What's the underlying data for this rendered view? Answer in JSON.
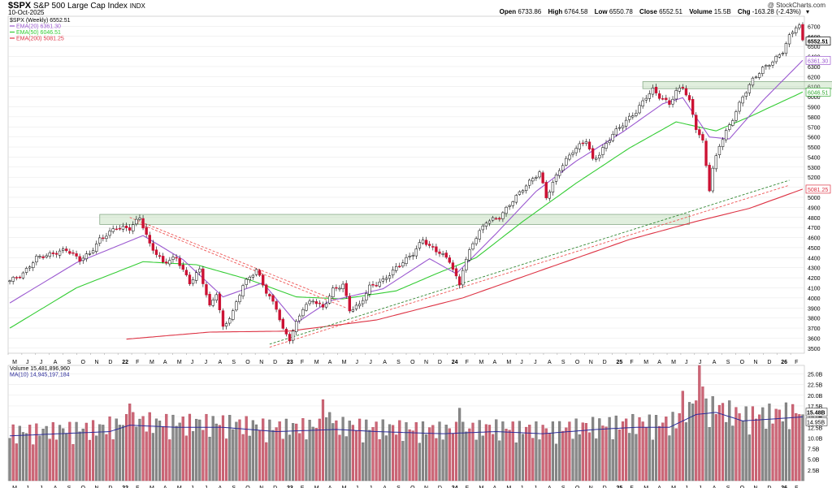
{
  "header": {
    "symbol": "$SPX",
    "name": "S&P 500 Large Cap Index",
    "exchange": "INDX",
    "date": "10-Oct-2025",
    "watermark": "@ StockCharts.com",
    "open_label": "Open",
    "open": "6733.86",
    "high_label": "High",
    "high": "6764.58",
    "low_label": "Low",
    "low": "6550.78",
    "close_label": "Close",
    "close": "6552.51",
    "volume_label": "Volume",
    "volume": "15.5B",
    "chg_label": "Chg",
    "chg": "-163.28 (-2.43%)",
    "chevron": "▾"
  },
  "chart_data": [
    {
      "type": "candlestick",
      "legend": [
        {
          "text": "$SPX (Weekly) 6552.51",
          "color": "#000000"
        },
        {
          "text": "EMA(20) 6361.30",
          "color": "#9b59d0"
        },
        {
          "text": "EMA(50) 6046.51",
          "color": "#33cc33"
        },
        {
          "text": "EMA(200) 5081.25",
          "color": "#dd3344"
        }
      ],
      "y_ticks": [
        3500,
        3600,
        3700,
        3800,
        3900,
        4000,
        4100,
        4200,
        4300,
        4400,
        4500,
        4600,
        4700,
        4800,
        4900,
        5000,
        5100,
        5200,
        5300,
        5400,
        5500,
        5600,
        5700,
        5800,
        5900,
        6000,
        6100,
        6200,
        6300,
        6400,
        6500,
        6600,
        6700
      ],
      "ylim": [
        3450,
        6800
      ],
      "price_labels": [
        {
          "text": "6552.51",
          "value": 6552.51,
          "color": "#000000",
          "bold": true
        },
        {
          "text": "6361.30",
          "value": 6361.3,
          "color": "#9b59d0",
          "bold": false
        },
        {
          "text": "6046.51",
          "value": 6046.51,
          "color": "#33aa33",
          "bold": false
        },
        {
          "text": "5081.25",
          "value": 5081.25,
          "color": "#dd3344",
          "bold": false
        }
      ],
      "x_months": [
        "M",
        "J",
        "J",
        "A",
        "S",
        "O",
        "N",
        "D",
        "22",
        "F",
        "M",
        "A",
        "M",
        "J",
        "J",
        "A",
        "S",
        "O",
        "N",
        "D",
        "23",
        "F",
        "M",
        "A",
        "M",
        "J",
        "J",
        "A",
        "S",
        "O",
        "N",
        "D",
        "24",
        "F",
        "M",
        "A",
        "M",
        "J",
        "J",
        "A",
        "S",
        "O",
        "N",
        "D",
        "25",
        "F",
        "M",
        "A",
        "M",
        "J",
        "J",
        "A",
        "S",
        "O",
        "N",
        "D",
        "26",
        "F"
      ],
      "close_keypoints": [
        [
          0,
          4170
        ],
        [
          4,
          4240
        ],
        [
          8,
          4400
        ],
        [
          12,
          4430
        ],
        [
          17,
          4480
        ],
        [
          21,
          4380
        ],
        [
          24,
          4440
        ],
        [
          27,
          4580
        ],
        [
          32,
          4700
        ],
        [
          36,
          4690
        ],
        [
          39,
          4800
        ],
        [
          42,
          4530
        ],
        [
          46,
          4350
        ],
        [
          50,
          4400
        ],
        [
          54,
          4150
        ],
        [
          57,
          4280
        ],
        [
          60,
          3910
        ],
        [
          62,
          4050
        ],
        [
          64,
          3700
        ],
        [
          67,
          3860
        ],
        [
          70,
          4130
        ],
        [
          74,
          4280
        ],
        [
          77,
          4060
        ],
        [
          80,
          3900
        ],
        [
          82,
          3680
        ],
        [
          84,
          3590
        ],
        [
          86,
          3750
        ],
        [
          88,
          3900
        ],
        [
          91,
          3980
        ],
        [
          94,
          3900
        ],
        [
          97,
          4080
        ],
        [
          100,
          4130
        ],
        [
          102,
          3880
        ],
        [
          105,
          3930
        ],
        [
          108,
          4110
        ],
        [
          112,
          4170
        ],
        [
          116,
          4300
        ],
        [
          121,
          4440
        ],
        [
          124,
          4580
        ],
        [
          126,
          4510
        ],
        [
          129,
          4450
        ],
        [
          132,
          4370
        ],
        [
          134,
          4200
        ],
        [
          135,
          4130
        ],
        [
          136,
          4290
        ],
        [
          139,
          4550
        ],
        [
          143,
          4760
        ],
        [
          147,
          4800
        ],
        [
          151,
          4970
        ],
        [
          155,
          5120
        ],
        [
          159,
          5250
        ],
        [
          161,
          5000
        ],
        [
          165,
          5280
        ],
        [
          169,
          5460
        ],
        [
          173,
          5570
        ],
        [
          175,
          5370
        ],
        [
          177,
          5430
        ],
        [
          181,
          5630
        ],
        [
          185,
          5760
        ],
        [
          188,
          5850
        ],
        [
          191,
          6000
        ],
        [
          193,
          6070
        ],
        [
          195,
          6000
        ],
        [
          198,
          5930
        ],
        [
          200,
          6050
        ],
        [
          202,
          6100
        ],
        [
          204,
          5950
        ],
        [
          206,
          5690
        ],
        [
          208,
          5550
        ],
        [
          209,
          5320
        ],
        [
          210,
          5080
        ],
        [
          211,
          5280
        ],
        [
          213,
          5520
        ],
        [
          215,
          5650
        ],
        [
          217,
          5780
        ],
        [
          220,
          6000
        ],
        [
          223,
          6170
        ],
        [
          226,
          6280
        ],
        [
          229,
          6350
        ],
        [
          232,
          6450
        ],
        [
          234,
          6600
        ],
        [
          236,
          6700
        ],
        [
          237,
          6700
        ],
        [
          238,
          6552.51
        ]
      ],
      "ema20_keypoints": [
        [
          0,
          3950
        ],
        [
          20,
          4350
        ],
        [
          40,
          4620
        ],
        [
          52,
          4380
        ],
        [
          64,
          4010
        ],
        [
          76,
          4150
        ],
        [
          86,
          3750
        ],
        [
          96,
          3970
        ],
        [
          112,
          4090
        ],
        [
          126,
          4390
        ],
        [
          134,
          4240
        ],
        [
          146,
          4640
        ],
        [
          158,
          5060
        ],
        [
          170,
          5360
        ],
        [
          184,
          5650
        ],
        [
          196,
          5930
        ],
        [
          202,
          5990
        ],
        [
          210,
          5600
        ],
        [
          216,
          5580
        ],
        [
          226,
          5960
        ],
        [
          238,
          6361.3
        ]
      ],
      "ema50_keypoints": [
        [
          0,
          3700
        ],
        [
          20,
          4100
        ],
        [
          40,
          4360
        ],
        [
          56,
          4330
        ],
        [
          72,
          4180
        ],
        [
          86,
          4010
        ],
        [
          100,
          3990
        ],
        [
          116,
          4070
        ],
        [
          128,
          4240
        ],
        [
          140,
          4400
        ],
        [
          154,
          4760
        ],
        [
          170,
          5140
        ],
        [
          186,
          5490
        ],
        [
          200,
          5750
        ],
        [
          212,
          5660
        ],
        [
          222,
          5800
        ],
        [
          238,
          6046.51
        ]
      ],
      "ema200_keypoints": [
        [
          35,
          3590
        ],
        [
          60,
          3660
        ],
        [
          84,
          3670
        ],
        [
          110,
          3780
        ],
        [
          136,
          4000
        ],
        [
          160,
          4280
        ],
        [
          186,
          4580
        ],
        [
          206,
          4760
        ],
        [
          222,
          4890
        ],
        [
          238,
          5081.25
        ]
      ],
      "support_zones": [
        {
          "x0": 27,
          "x1": 204,
          "y0": 4730,
          "y1": 4830
        },
        {
          "x0": 190,
          "x1": 251,
          "y0": 6080,
          "y1": 6150
        }
      ],
      "trendlines": [
        {
          "x0": 36,
          "y0": 4800,
          "x1": 99,
          "y1": 3960,
          "color": "#ee5555"
        },
        {
          "x0": 38,
          "y0": 4750,
          "x1": 101,
          "y1": 3900,
          "color": "#ee5555"
        },
        {
          "x0": 78,
          "y0": 3540,
          "x1": 234,
          "y1": 5170,
          "color": "#338833"
        },
        {
          "x0": 78,
          "y0": 3510,
          "x1": 234,
          "y1": 5120,
          "color": "#ee5555"
        }
      ]
    },
    {
      "type": "bar",
      "legend": [
        {
          "text": "Volume 15,481,896,960",
          "color": "#000000"
        },
        {
          "text": "MA(10) 14,945,197,184",
          "color": "#2a2a99"
        }
      ],
      "y_ticks": [
        2.5,
        5.0,
        7.5,
        10.0,
        12.5,
        15.0,
        17.5,
        20.0,
        22.5,
        25.0
      ],
      "y_tick_labels": [
        "2.5B",
        "5.0B",
        "7.5B",
        "10.0B",
        "12.5B",
        "15.0B",
        "17.5B",
        "20.0B",
        "22.5B",
        "25.0B"
      ],
      "ylim": [
        0,
        27
      ],
      "last_labels": [
        {
          "text": "15.48B",
          "value": 15.48,
          "bold": true
        },
        {
          "text": "14.95B",
          "value": 14.95,
          "bold": false
        }
      ],
      "x_months": [
        "M",
        "J",
        "J",
        "A",
        "S",
        "O",
        "N",
        "D",
        "22",
        "F",
        "M",
        "A",
        "M",
        "J",
        "J",
        "A",
        "S",
        "O",
        "N",
        "D",
        "23",
        "F",
        "M",
        "A",
        "M",
        "J",
        "J",
        "A",
        "S",
        "O",
        "N",
        "D",
        "24",
        "F",
        "M",
        "A",
        "M",
        "J",
        "J",
        "A",
        "S",
        "O",
        "N",
        "D",
        "25",
        "F",
        "M",
        "A",
        "M",
        "J",
        "J",
        "A",
        "S",
        "O",
        "N",
        "D",
        "26",
        "F"
      ],
      "volume_keypoints_billions": [
        [
          0,
          10.5
        ],
        [
          30,
          11.5
        ],
        [
          36,
          13
        ],
        [
          50,
          12.5
        ],
        [
          64,
          12.5
        ],
        [
          80,
          11.5
        ],
        [
          98,
          12
        ],
        [
          110,
          11.5
        ],
        [
          130,
          11
        ],
        [
          146,
          11.5
        ],
        [
          160,
          11
        ],
        [
          176,
          12
        ],
        [
          188,
          12.5
        ],
        [
          198,
          12.5
        ],
        [
          206,
          15.5
        ],
        [
          212,
          16
        ],
        [
          220,
          14
        ],
        [
          230,
          14.5
        ],
        [
          238,
          14.95
        ]
      ],
      "volume_spikes": [
        [
          30,
          15
        ],
        [
          36,
          18
        ],
        [
          37,
          16
        ],
        [
          44,
          14.5
        ],
        [
          94,
          19
        ],
        [
          96,
          16
        ],
        [
          135,
          17
        ],
        [
          202,
          21
        ],
        [
          205,
          18
        ],
        [
          207,
          27
        ],
        [
          208,
          22
        ],
        [
          228,
          18
        ],
        [
          238,
          15.48
        ]
      ]
    }
  ]
}
